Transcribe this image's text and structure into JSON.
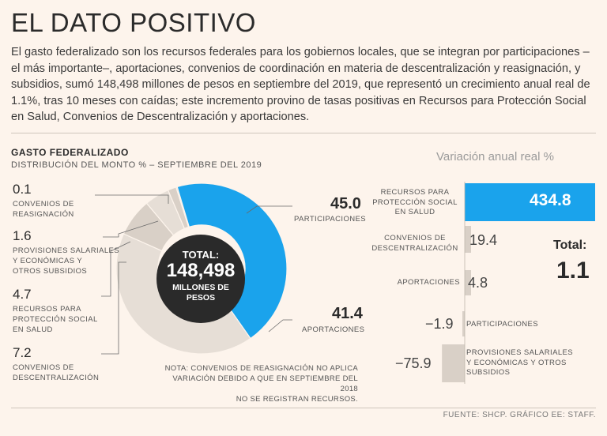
{
  "header": {
    "title": "EL DATO POSITIVO",
    "intro": "El gasto federalizado son los recursos federales para los gobiernos locales, que se integran por participaciones –el más importante–, aportaciones, convenios de coordinación en materia de descentralización y reasignación, y subsidios, sumó 148,498 millones de pesos en septiembre del 2019, que representó un crecimiento anual real de 1.1%, tras 10 meses con caídas; este incremento provino de tasas positivas en Recursos para Protección Social en Salud, Convenios de Descentralización y aportaciones."
  },
  "donut": {
    "title": "GASTO FEDERALIZADO",
    "subtitle": "DISTRIBUCIÓN DEL MONTO % – SEPTIEMBRE DEL 2019",
    "center": {
      "label": "TOTAL:",
      "value": "148,498",
      "unit_line1": "MILLONES DE",
      "unit_line2": "PESOS"
    },
    "labels": {
      "reasignacion_value": "0.1",
      "reasignacion_text_1": "CONVENIOS DE",
      "reasignacion_text_2": "REASIGNACIÓN",
      "provisiones_value": "1.6",
      "provisiones_text_1": "PROVISIONES SALARIALES",
      "provisiones_text_2": "Y ECONÓMICAS Y",
      "provisiones_text_3": "OTROS SUBSIDIOS",
      "proteccion_value": "4.7",
      "proteccion_text_1": "RECURSOS PARA",
      "proteccion_text_2": "PROTECCIÓN SOCIAL",
      "proteccion_text_3": "EN SALUD",
      "descentralizacion_value": "7.2",
      "descentralizacion_text_1": "CONVENIOS DE",
      "descentralizacion_text_2": "DESCENTRALIZACIÓN",
      "participaciones_value": "45.0",
      "participaciones_text": "PARTICIPACIONES",
      "aportaciones_value": "41.4",
      "aportaciones_text": "APORTACIONES"
    },
    "note_1": "NOTA: CONVENIOS DE REASIGNACIÓN NO APLICA",
    "note_2": "VARIACIÓN DEBIDO A QUE EN SEPTIEMBRE DEL 2018",
    "note_3": "NO SE REGISTRAN RECURSOS."
  },
  "variation": {
    "title": "Variación anual real %",
    "total_label": "Total:",
    "total_value": "1.1",
    "rows": [
      {
        "l1": "RECURSOS PARA",
        "l2": "PROTECCIÓN SOCIAL",
        "l3": "EN SALUD",
        "value": "434.8"
      },
      {
        "l1": "CONVENIOS DE",
        "l2": "DESCENTRALIZACIÓN",
        "l3": "",
        "value": "19.4"
      },
      {
        "l1": "APORTACIONES",
        "l2": "",
        "l3": "",
        "value": "4.8"
      },
      {
        "l1": "PARTICIPACIONES",
        "l2": "",
        "l3": "",
        "value": "−1.9"
      },
      {
        "l1": "PROVISIONES SALARIALES",
        "l2": "Y ECONÓMICAS Y OTROS",
        "l3": "SUBSIDIOS",
        "value": "−75.9"
      }
    ]
  },
  "source": "FUENTE: SHCP. GRÁFICO EE: STAFF.",
  "colors": {
    "accent_blue": "#1aa3ec",
    "beige_dark": "#d9d0c7",
    "beige_light": "#e6ded6",
    "center_dark": "#2a2a2a"
  },
  "chart_data": [
    {
      "type": "pie",
      "title": "GASTO FEDERALIZADO",
      "subtitle": "DISTRIBUCIÓN DEL MONTO % – SEPTIEMBRE DEL 2019",
      "categories": [
        "Participaciones",
        "Aportaciones",
        "Convenios de descentralización",
        "Recursos para protección social en salud",
        "Provisiones salariales y económicas y otros subsidios",
        "Convenios de reasignación"
      ],
      "values": [
        45.0,
        41.4,
        7.2,
        4.7,
        1.6,
        0.1
      ],
      "center_total": 148498
    },
    {
      "type": "bar",
      "orientation": "horizontal",
      "title": "Variación anual real %",
      "categories": [
        "Recursos para protección social en salud",
        "Convenios de descentralización",
        "Aportaciones",
        "Participaciones",
        "Provisiones salariales y económicas y otros subsidios"
      ],
      "values": [
        434.8,
        19.4,
        4.8,
        -1.9,
        -75.9
      ],
      "total": 1.1
    }
  ]
}
